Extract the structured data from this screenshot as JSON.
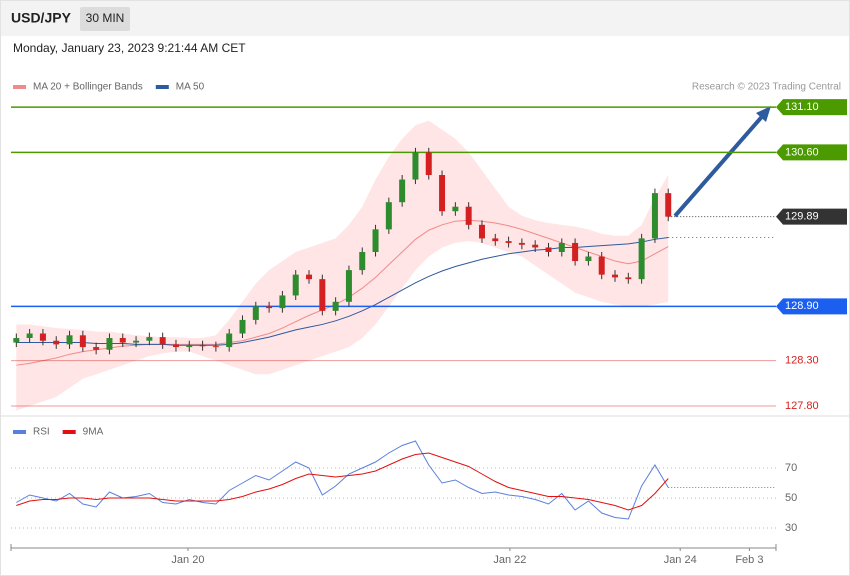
{
  "header": {
    "symbol": "USD/JPY",
    "interval": "30 MIN",
    "timestamp": "Monday, January 23, 2023 9:21:44 AM CET"
  },
  "chart_data": {
    "type": "candlestick",
    "legend": [
      {
        "name": "MA 20 + Bollinger Bands",
        "color": "#f08a8a"
      },
      {
        "name": "MA 50",
        "color": "#2e5a9e"
      }
    ],
    "credit": "Research © 2023 Trading Central",
    "xlim": [
      -0.4,
      57.1
    ],
    "xticks": [
      {
        "value": 12.9,
        "label": "Jan 20"
      },
      {
        "value": 37.1,
        "label": "Jan 22"
      },
      {
        "value": 49.9,
        "label": "Jan 24"
      },
      {
        "value": 55.1,
        "label": "Feb 3"
      }
    ],
    "ylim": [
      127.7,
      131.62
    ],
    "open": [
      128.5,
      128.55,
      128.6,
      128.52,
      128.48,
      128.58,
      128.45,
      128.42,
      128.55,
      128.5,
      128.52,
      128.56,
      128.48,
      128.45,
      128.47,
      128.46,
      128.45,
      128.6,
      128.75,
      128.9,
      128.88,
      129.02,
      129.25,
      129.2,
      128.85,
      128.95,
      129.3,
      129.5,
      129.75,
      130.05,
      130.3,
      130.6,
      130.35,
      129.95,
      130.0,
      129.8,
      129.65,
      129.62,
      129.6,
      129.58,
      129.55,
      129.5,
      129.6,
      129.4,
      129.45,
      129.25,
      129.22,
      129.2,
      129.65,
      130.15
    ],
    "high": [
      128.6,
      128.65,
      128.65,
      128.57,
      128.63,
      128.63,
      128.5,
      128.6,
      128.6,
      128.57,
      128.61,
      128.61,
      128.53,
      128.52,
      128.52,
      128.51,
      128.65,
      128.8,
      128.95,
      128.95,
      129.07,
      129.3,
      129.3,
      129.25,
      129.0,
      129.35,
      129.55,
      129.8,
      130.1,
      130.35,
      130.65,
      130.65,
      130.4,
      130.05,
      130.05,
      129.85,
      129.7,
      129.67,
      129.65,
      129.63,
      129.6,
      129.65,
      129.65,
      129.5,
      129.5,
      129.3,
      129.27,
      129.7,
      130.2,
      130.2
    ],
    "low": [
      128.45,
      128.5,
      128.47,
      128.43,
      128.43,
      128.4,
      128.37,
      128.37,
      128.45,
      128.45,
      128.47,
      128.43,
      128.4,
      128.4,
      128.41,
      128.4,
      128.4,
      128.55,
      128.7,
      128.83,
      128.83,
      128.97,
      129.15,
      128.8,
      128.8,
      128.9,
      129.25,
      129.45,
      129.7,
      130.0,
      130.25,
      130.3,
      129.9,
      129.9,
      129.75,
      129.6,
      129.57,
      129.55,
      129.53,
      129.5,
      129.45,
      129.45,
      129.35,
      129.35,
      129.2,
      129.17,
      129.15,
      129.15,
      129.6,
      129.84
    ],
    "close": [
      128.55,
      128.6,
      128.52,
      128.48,
      128.58,
      128.45,
      128.42,
      128.55,
      128.5,
      128.52,
      128.56,
      128.48,
      128.45,
      128.47,
      128.46,
      128.45,
      128.6,
      128.75,
      128.9,
      128.88,
      129.02,
      129.25,
      129.2,
      128.85,
      128.95,
      129.3,
      129.5,
      129.75,
      130.05,
      130.3,
      130.6,
      130.35,
      129.95,
      130.0,
      129.8,
      129.65,
      129.62,
      129.6,
      129.58,
      129.55,
      129.5,
      129.6,
      129.4,
      129.45,
      129.25,
      129.22,
      129.2,
      129.65,
      130.15,
      129.89
    ],
    "up_color": "#2e8b2e",
    "down_color": "#d42020",
    "ma20": [
      128.25,
      128.27,
      128.3,
      128.33,
      128.37,
      128.4,
      128.42,
      128.44,
      128.46,
      128.47,
      128.48,
      128.48,
      128.48,
      128.48,
      128.48,
      128.48,
      128.5,
      128.52,
      128.56,
      128.6,
      128.66,
      128.73,
      128.8,
      128.86,
      128.92,
      129.0,
      129.1,
      129.22,
      129.36,
      129.5,
      129.64,
      129.74,
      129.8,
      129.84,
      129.85,
      129.84,
      129.82,
      129.79,
      129.75,
      129.7,
      129.65,
      129.6,
      129.55,
      129.5,
      129.45,
      129.4,
      129.37,
      129.4,
      129.48,
      129.56
    ],
    "ma50": [
      128.5,
      128.5,
      128.5,
      128.5,
      128.5,
      128.5,
      128.49,
      128.49,
      128.49,
      128.48,
      128.48,
      128.48,
      128.47,
      128.47,
      128.47,
      128.47,
      128.48,
      128.5,
      128.53,
      128.56,
      128.6,
      128.64,
      128.67,
      128.7,
      128.74,
      128.79,
      128.85,
      128.92,
      129.0,
      129.08,
      129.16,
      129.23,
      129.29,
      129.34,
      129.38,
      129.42,
      129.45,
      129.48,
      129.5,
      129.52,
      129.53,
      129.55,
      129.55,
      129.56,
      129.57,
      129.58,
      129.59,
      129.61,
      129.64,
      129.66
    ],
    "bb_upper": [
      128.7,
      128.7,
      128.68,
      128.66,
      128.65,
      128.64,
      128.62,
      128.62,
      128.6,
      128.58,
      128.57,
      128.56,
      128.56,
      128.55,
      128.55,
      128.58,
      128.75,
      128.95,
      129.15,
      129.3,
      129.4,
      129.5,
      129.55,
      129.6,
      129.65,
      129.8,
      130.0,
      130.3,
      130.55,
      130.75,
      130.9,
      130.95,
      130.85,
      130.75,
      130.6,
      130.4,
      130.2,
      130.0,
      129.9,
      129.85,
      129.82,
      129.8,
      129.78,
      129.75,
      129.7,
      129.68,
      129.68,
      129.8,
      130.1,
      130.35
    ],
    "bb_lower": [
      127.75,
      127.8,
      127.85,
      127.9,
      128.0,
      128.1,
      128.15,
      128.2,
      128.25,
      128.3,
      128.35,
      128.38,
      128.4,
      128.4,
      128.35,
      128.3,
      128.25,
      128.2,
      128.15,
      128.15,
      128.2,
      128.25,
      128.3,
      128.35,
      128.4,
      128.45,
      128.55,
      128.7,
      128.9,
      129.1,
      129.3,
      129.45,
      129.55,
      129.6,
      129.62,
      129.6,
      129.55,
      129.5,
      129.45,
      129.35,
      129.25,
      129.15,
      129.05,
      129.0,
      128.95,
      128.92,
      128.9,
      128.9,
      128.92,
      128.95
    ],
    "levels": [
      {
        "value": 131.1,
        "label": "131.10",
        "color": "#4a9a00",
        "kind": "tag"
      },
      {
        "value": 130.6,
        "label": "130.60",
        "color": "#4a9a00",
        "kind": "tag"
      },
      {
        "value": 129.89,
        "label": "129.89",
        "color": "#333333",
        "kind": "current"
      },
      {
        "value": 128.9,
        "label": "128.90",
        "color": "#1a5ff0",
        "kind": "tag"
      },
      {
        "value": 128.3,
        "label": "128.30",
        "color": "#d42020",
        "kind": "text"
      },
      {
        "value": 127.8,
        "label": "127.80",
        "color": "#d42020",
        "kind": "text"
      }
    ],
    "rsi": {
      "legend": [
        {
          "name": "RSI",
          "color": "#5b7fdc"
        },
        {
          "name": "9MA",
          "color": "#e01010"
        }
      ],
      "ylim": [
        20,
        100
      ],
      "yticks": [
        30,
        50,
        70
      ],
      "values": [
        47,
        52,
        50,
        48,
        53,
        46,
        44,
        54,
        50,
        51,
        53,
        47,
        46,
        49,
        47,
        46,
        55,
        60,
        65,
        62,
        68,
        74,
        70,
        52,
        58,
        66,
        70,
        74,
        80,
        85,
        88,
        72,
        60,
        62,
        57,
        53,
        54,
        52,
        51,
        49,
        46,
        53,
        42,
        48,
        40,
        37,
        36,
        58,
        72,
        57
      ],
      "ma": [
        45,
        48,
        49,
        49,
        50,
        50,
        49,
        50,
        50,
        50,
        50,
        49,
        48,
        48,
        48,
        48,
        49,
        51,
        54,
        56,
        59,
        63,
        66,
        65,
        64,
        65,
        66,
        68,
        72,
        76,
        79,
        80,
        77,
        74,
        71,
        66,
        61,
        57,
        55,
        53,
        51,
        51,
        50,
        49,
        47,
        45,
        42,
        45,
        53,
        63
      ]
    }
  }
}
